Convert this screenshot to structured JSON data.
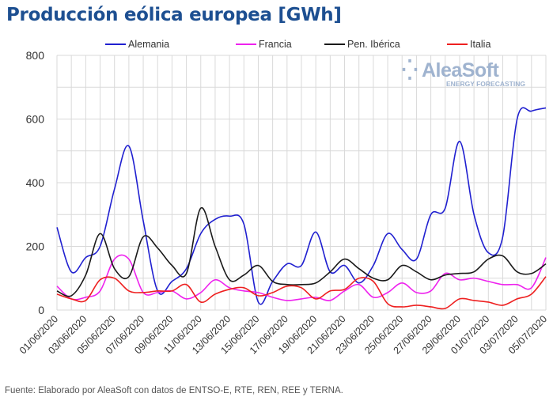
{
  "title": "Producción eólica europea [GWh]",
  "footer": "Fuente: Elaborado por AleaSoft con datos de ENTSO-E, RTE, REN, REE y TERNA.",
  "logo": {
    "name": "AleaSoft",
    "tagline": "ENERGY FORECASTING"
  },
  "chart_data": {
    "type": "line",
    "title": "Producción eólica europea [GWh]",
    "xlabel": "",
    "ylabel": "",
    "ylim": [
      0,
      800
    ],
    "yticks": [
      0,
      200,
      400,
      600,
      800
    ],
    "ygrid_step": 100,
    "grid": true,
    "legend_position": "top",
    "x": [
      "01/06/2020",
      "02/06/2020",
      "03/06/2020",
      "04/06/2020",
      "05/06/2020",
      "06/06/2020",
      "07/06/2020",
      "08/06/2020",
      "09/06/2020",
      "10/06/2020",
      "11/06/2020",
      "12/06/2020",
      "13/06/2020",
      "14/06/2020",
      "15/06/2020",
      "16/06/2020",
      "17/06/2020",
      "18/06/2020",
      "19/06/2020",
      "20/06/2020",
      "21/06/2020",
      "22/06/2020",
      "23/06/2020",
      "24/06/2020",
      "25/06/2020",
      "26/06/2020",
      "27/06/2020",
      "28/06/2020",
      "29/06/2020",
      "30/06/2020",
      "01/07/2020",
      "02/07/2020",
      "03/07/2020",
      "04/07/2020",
      "05/07/2020"
    ],
    "xtick_labels": [
      "01/06/2020",
      "03/06/2020",
      "05/06/2020",
      "07/06/2020",
      "09/06/2020",
      "11/06/2020",
      "13/06/2020",
      "15/06/2020",
      "17/06/2020",
      "19/06/2020",
      "21/06/2020",
      "23/06/2020",
      "25/06/2020",
      "27/06/2020",
      "29/06/2020",
      "01/07/2020",
      "03/07/2020",
      "05/07/2020"
    ],
    "series": [
      {
        "name": "Alemania",
        "color": "#2020d0",
        "values": [
          260,
          120,
          165,
          200,
          380,
          515,
          280,
          60,
          90,
          130,
          240,
          285,
          295,
          270,
          25,
          90,
          145,
          140,
          245,
          120,
          140,
          85,
          140,
          240,
          190,
          160,
          300,
          320,
          530,
          300,
          180,
          230,
          600,
          625,
          635
        ]
      },
      {
        "name": "Francia",
        "color": "#ee22ee",
        "values": [
          75,
          35,
          40,
          60,
          160,
          160,
          55,
          55,
          60,
          35,
          55,
          95,
          70,
          60,
          55,
          40,
          30,
          35,
          40,
          30,
          60,
          80,
          40,
          55,
          85,
          55,
          60,
          115,
          95,
          100,
          90,
          80,
          80,
          70,
          165
        ]
      },
      {
        "name": "Pen. Ibérica",
        "color": "#1a1a1a",
        "values": [
          60,
          45,
          110,
          240,
          130,
          105,
          230,
          195,
          140,
          115,
          320,
          200,
          95,
          110,
          140,
          90,
          80,
          80,
          85,
          120,
          160,
          130,
          100,
          95,
          140,
          120,
          95,
          110,
          115,
          120,
          160,
          170,
          120,
          115,
          145
        ]
      },
      {
        "name": "Italia",
        "color": "#ee2020",
        "values": [
          50,
          35,
          30,
          95,
          100,
          60,
          55,
          60,
          60,
          80,
          25,
          50,
          65,
          70,
          45,
          55,
          75,
          70,
          35,
          60,
          65,
          100,
          90,
          20,
          10,
          15,
          10,
          5,
          35,
          30,
          25,
          15,
          35,
          50,
          105
        ]
      }
    ]
  }
}
